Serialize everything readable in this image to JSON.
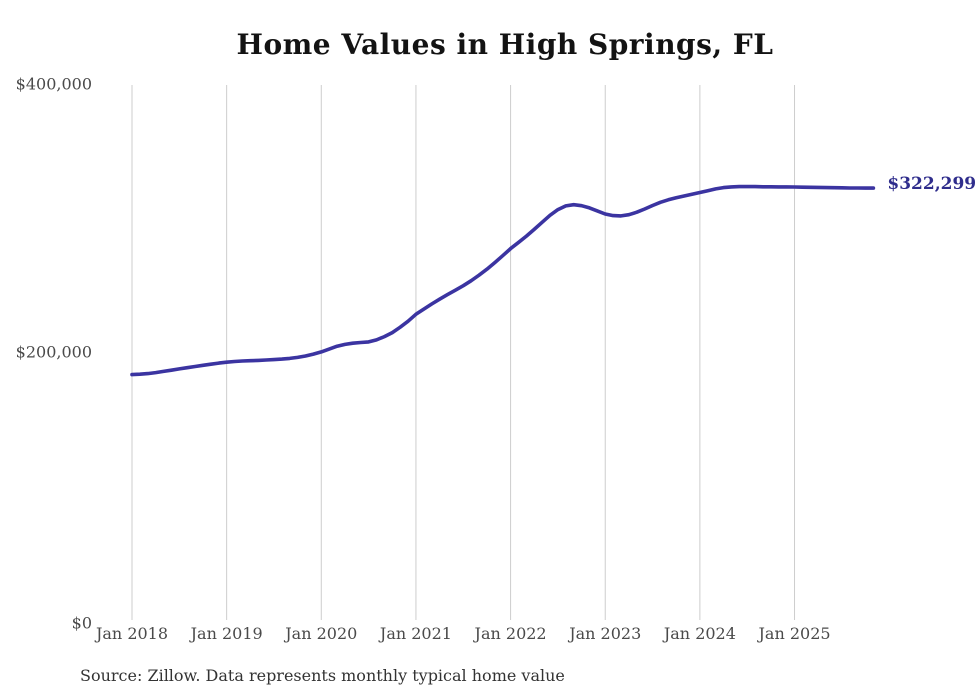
{
  "chart": {
    "title": "Home Values in High Springs, FL",
    "end_label": "$322,299",
    "source_note": "Source: Zillow. Data represents monthly typical home value",
    "colors": {
      "line": "#3b34a1",
      "end_label_text": "#2f2d8c",
      "gridline": "#cdcdcd",
      "title_text": "#131313",
      "tick_text": "#4a4a4a",
      "source_text": "#333333",
      "background": "#ffffff"
    }
  },
  "chart_data": {
    "type": "line",
    "title": "Home Values in High Springs, FL",
    "xlabel": "",
    "ylabel": "",
    "ylim": [
      0,
      400000
    ],
    "grid": "vertical-only",
    "legend": "none",
    "x_tick_labels": [
      "Jan 2018",
      "Jan 2019",
      "Jan 2020",
      "Jan 2021",
      "Jan 2022",
      "Jan 2023",
      "Jan 2024",
      "Jan 2025"
    ],
    "y_ticks": [
      {
        "value": 0,
        "label": "$0"
      },
      {
        "value": 200000,
        "label": "$200,000"
      },
      {
        "value": 400000,
        "label": "$400,000"
      }
    ],
    "end_annotation": "$322,299",
    "series": [
      {
        "name": "Monthly typical home value",
        "frequency": "monthly",
        "start_month": "2018-01",
        "end_month": "2025-11",
        "values": [
          183100,
          183400,
          183900,
          184600,
          185500,
          186400,
          187400,
          188300,
          189200,
          190100,
          190900,
          191700,
          192400,
          192900,
          193300,
          193500,
          193700,
          194000,
          194300,
          194700,
          195200,
          196000,
          197000,
          198400,
          200100,
          202200,
          204300,
          205700,
          206600,
          207100,
          207500,
          209000,
          211500,
          214500,
          218500,
          223000,
          228100,
          232000,
          235800,
          239400,
          242800,
          246100,
          249500,
          253200,
          257300,
          261800,
          266700,
          271900,
          277200,
          281800,
          286500,
          291500,
          296800,
          302000,
          306300,
          309000,
          309900,
          309200,
          307500,
          305300,
          303000,
          301800,
          301600,
          302500,
          304300,
          306700,
          309300,
          311700,
          313600,
          315100,
          316400,
          317700,
          319000,
          320400,
          321700,
          322700,
          323200,
          323400,
          323400,
          323400,
          323300,
          323300,
          323200,
          323200,
          323100,
          323000,
          322900,
          322800,
          322700,
          322600,
          322500,
          322400,
          322400,
          322300,
          322299
        ]
      }
    ]
  }
}
